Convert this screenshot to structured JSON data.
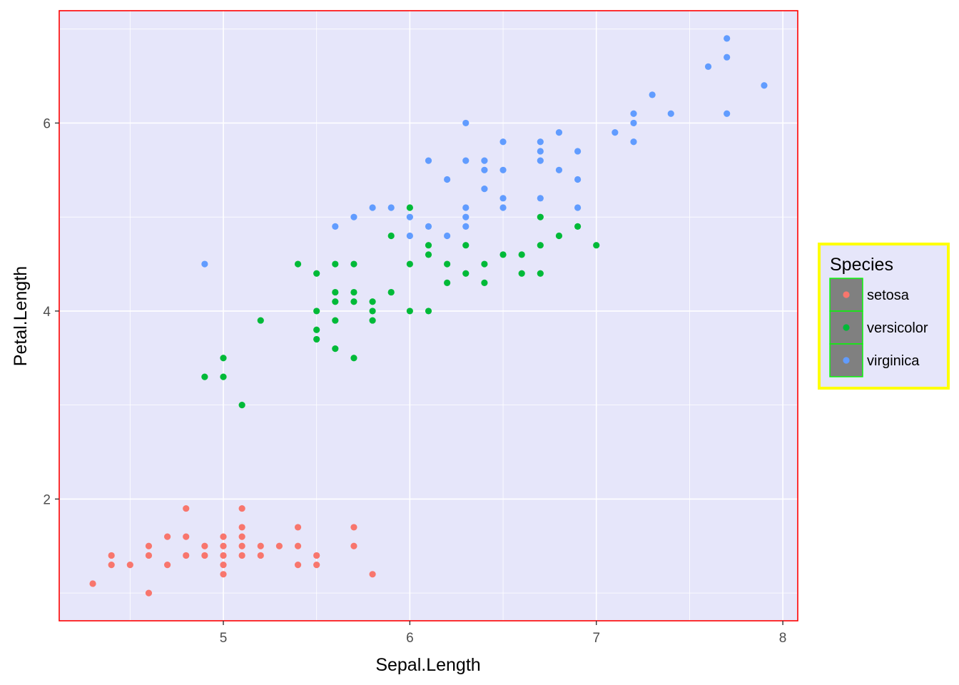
{
  "chart_data": {
    "type": "scatter",
    "xlabel": "Sepal.Length",
    "ylabel": "Petal.Length",
    "xlim": [
      4.12,
      8.08
    ],
    "ylim": [
      0.705,
      7.195
    ],
    "x_ticks": [
      5,
      6,
      7,
      8
    ],
    "x_minor_ticks": [
      4.5,
      5.5,
      6.5,
      7.5
    ],
    "y_ticks": [
      2,
      4,
      6
    ],
    "y_minor_ticks": [
      1,
      3,
      5,
      7
    ],
    "x_tick_labels": [
      "5",
      "6",
      "7",
      "8"
    ],
    "y_tick_labels": [
      "2",
      "4",
      "6"
    ],
    "panel_background": "#E6E6FA",
    "panel_border_color": "#FF0000",
    "grid": true,
    "grid_color": "#FFFFFF",
    "legend": {
      "title": "Species",
      "position": "right",
      "border_color": "#FFFF00",
      "background": "#E6E6FA",
      "key_background": "#808080",
      "key_border_color": "#00FF00",
      "entries": [
        "setosa",
        "versicolor",
        "virginica"
      ]
    },
    "series": [
      {
        "name": "setosa",
        "color": "#F8766D",
        "points": [
          [
            4.3,
            1.1
          ],
          [
            4.4,
            1.4
          ],
          [
            4.4,
            1.3
          ],
          [
            4.5,
            1.3
          ],
          [
            4.6,
            1.5
          ],
          [
            4.6,
            1.4
          ],
          [
            4.6,
            1.0
          ],
          [
            4.7,
            1.6
          ],
          [
            4.7,
            1.3
          ],
          [
            4.8,
            1.9
          ],
          [
            4.8,
            1.6
          ],
          [
            4.8,
            1.4
          ],
          [
            4.9,
            1.5
          ],
          [
            4.9,
            1.4
          ],
          [
            5.0,
            1.6
          ],
          [
            5.0,
            1.5
          ],
          [
            5.0,
            1.4
          ],
          [
            5.0,
            1.3
          ],
          [
            5.0,
            1.2
          ],
          [
            5.1,
            1.9
          ],
          [
            5.1,
            1.7
          ],
          [
            5.1,
            1.6
          ],
          [
            5.1,
            1.5
          ],
          [
            5.1,
            1.4
          ],
          [
            5.2,
            1.5
          ],
          [
            5.2,
            1.4
          ],
          [
            5.3,
            1.5
          ],
          [
            5.4,
            1.7
          ],
          [
            5.4,
            1.5
          ],
          [
            5.4,
            1.3
          ],
          [
            5.5,
            1.4
          ],
          [
            5.5,
            1.3
          ],
          [
            5.7,
            1.7
          ],
          [
            5.7,
            1.5
          ],
          [
            5.8,
            1.2
          ]
        ]
      },
      {
        "name": "versicolor",
        "color": "#00BA38",
        "points": [
          [
            4.9,
            3.3
          ],
          [
            5.0,
            3.5
          ],
          [
            5.0,
            3.3
          ],
          [
            5.1,
            3.0
          ],
          [
            5.2,
            3.9
          ],
          [
            5.4,
            4.5
          ],
          [
            5.5,
            4.4
          ],
          [
            5.5,
            4.0
          ],
          [
            5.5,
            3.8
          ],
          [
            5.5,
            3.7
          ],
          [
            5.6,
            4.5
          ],
          [
            5.6,
            4.2
          ],
          [
            5.6,
            4.1
          ],
          [
            5.6,
            3.9
          ],
          [
            5.6,
            3.6
          ],
          [
            5.7,
            4.5
          ],
          [
            5.7,
            4.2
          ],
          [
            5.7,
            4.1
          ],
          [
            5.7,
            3.5
          ],
          [
            5.8,
            4.1
          ],
          [
            5.8,
            4.0
          ],
          [
            5.8,
            3.9
          ],
          [
            5.9,
            4.8
          ],
          [
            5.9,
            4.2
          ],
          [
            6.0,
            5.1
          ],
          [
            6.0,
            4.5
          ],
          [
            6.0,
            4.0
          ],
          [
            6.1,
            4.7
          ],
          [
            6.1,
            4.6
          ],
          [
            6.1,
            4.0
          ],
          [
            6.2,
            4.5
          ],
          [
            6.2,
            4.3
          ],
          [
            6.3,
            4.7
          ],
          [
            6.3,
            4.4
          ],
          [
            6.4,
            4.5
          ],
          [
            6.4,
            4.3
          ],
          [
            6.5,
            4.6
          ],
          [
            6.6,
            4.6
          ],
          [
            6.6,
            4.4
          ],
          [
            6.7,
            5.0
          ],
          [
            6.7,
            4.7
          ],
          [
            6.7,
            4.4
          ],
          [
            6.8,
            4.8
          ],
          [
            6.9,
            4.9
          ],
          [
            7.0,
            4.7
          ]
        ]
      },
      {
        "name": "virginica",
        "color": "#619CFF",
        "points": [
          [
            4.9,
            4.5
          ],
          [
            5.6,
            4.9
          ],
          [
            5.7,
            5.0
          ],
          [
            5.8,
            5.1
          ],
          [
            5.9,
            5.1
          ],
          [
            6.0,
            5.0
          ],
          [
            6.0,
            4.8
          ],
          [
            6.1,
            5.6
          ],
          [
            6.1,
            4.9
          ],
          [
            6.2,
            5.4
          ],
          [
            6.2,
            4.8
          ],
          [
            6.3,
            6.0
          ],
          [
            6.3,
            5.6
          ],
          [
            6.3,
            5.1
          ],
          [
            6.3,
            5.0
          ],
          [
            6.3,
            4.9
          ],
          [
            6.4,
            5.6
          ],
          [
            6.4,
            5.5
          ],
          [
            6.4,
            5.3
          ],
          [
            6.5,
            5.8
          ],
          [
            6.5,
            5.5
          ],
          [
            6.5,
            5.2
          ],
          [
            6.5,
            5.1
          ],
          [
            6.7,
            5.8
          ],
          [
            6.7,
            5.7
          ],
          [
            6.7,
            5.6
          ],
          [
            6.7,
            5.2
          ],
          [
            6.8,
            5.9
          ],
          [
            6.8,
            5.5
          ],
          [
            6.9,
            5.7
          ],
          [
            6.9,
            5.4
          ],
          [
            6.9,
            5.1
          ],
          [
            7.1,
            5.9
          ],
          [
            7.2,
            6.1
          ],
          [
            7.2,
            6.0
          ],
          [
            7.2,
            5.8
          ],
          [
            7.3,
            6.3
          ],
          [
            7.4,
            6.1
          ],
          [
            7.6,
            6.6
          ],
          [
            7.7,
            6.9
          ],
          [
            7.7,
            6.7
          ],
          [
            7.7,
            6.1
          ],
          [
            7.9,
            6.4
          ]
        ]
      }
    ]
  }
}
